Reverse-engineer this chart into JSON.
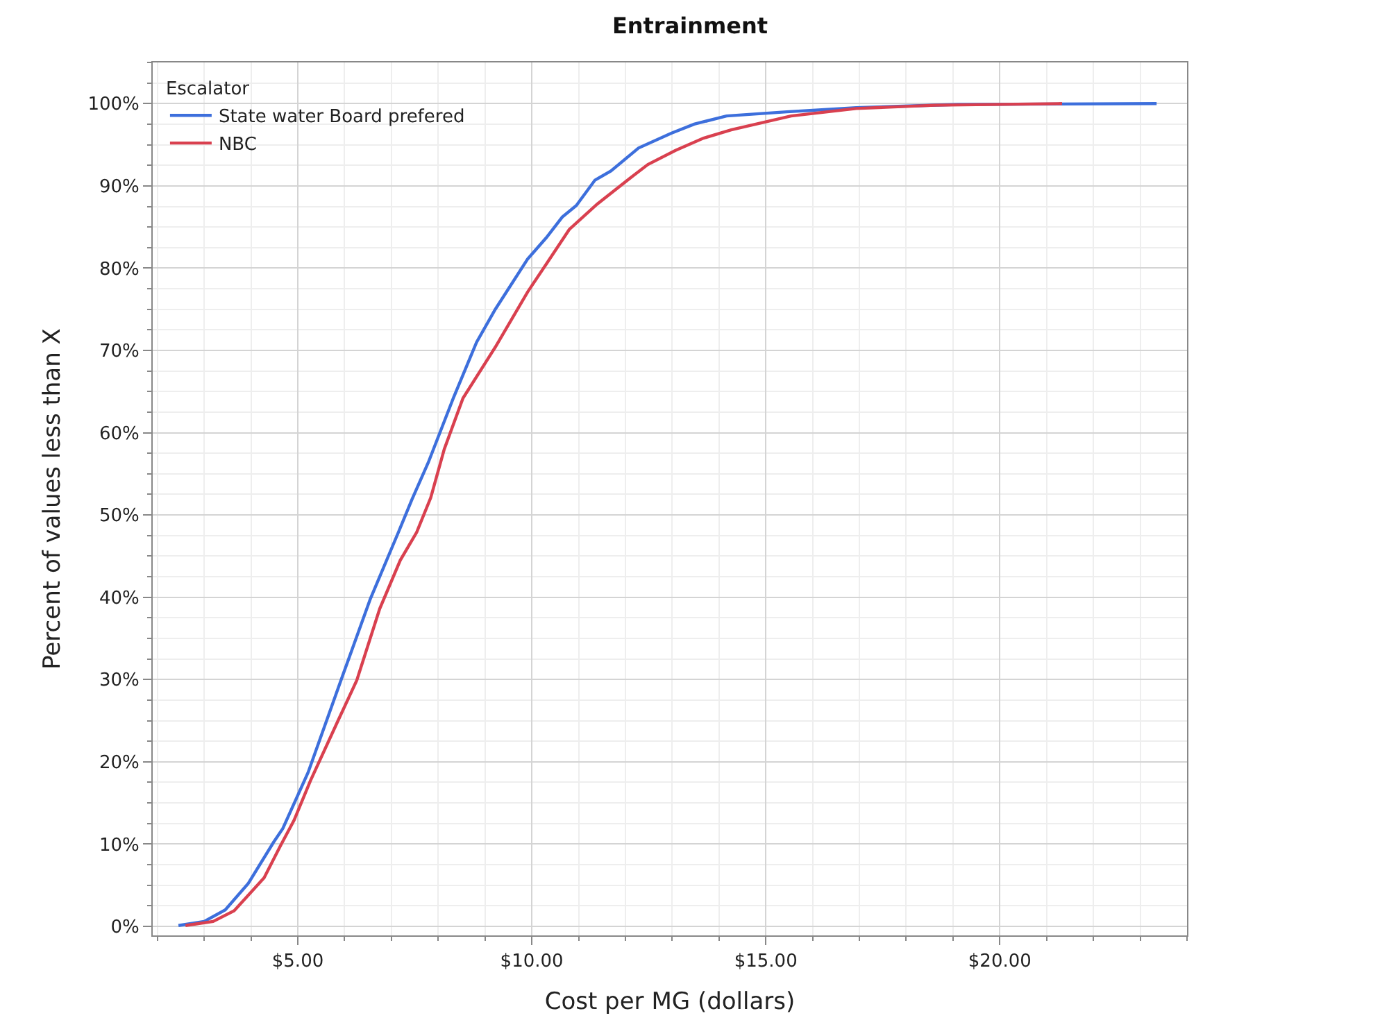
{
  "chart_data": {
    "type": "line",
    "title": "Entrainment",
    "xlabel": "Cost per MG (dollars)",
    "ylabel": "Percent of values less than X",
    "legend_title": "Escalator",
    "legend": "top left",
    "grid": true,
    "marker": "none",
    "line_style": "solid",
    "xlim": [
      1.9,
      24.0
    ],
    "xticks": [
      {
        "value": 5,
        "label": "$5.00"
      },
      {
        "value": 10,
        "label": "$10.00"
      },
      {
        "value": 15,
        "label": "$15.00"
      },
      {
        "value": 20,
        "label": "$20.00"
      }
    ],
    "ylim": [
      -1.1,
      105
    ],
    "yticks": [
      {
        "value": 0,
        "label": "0%"
      },
      {
        "value": 10,
        "label": "10%"
      },
      {
        "value": 20,
        "label": "20%"
      },
      {
        "value": 30,
        "label": "30%"
      },
      {
        "value": 40,
        "label": "40%"
      },
      {
        "value": 50,
        "label": "50%"
      },
      {
        "value": 60,
        "label": "60%"
      },
      {
        "value": 70,
        "label": "70%"
      },
      {
        "value": 80,
        "label": "80%"
      },
      {
        "value": 90,
        "label": "90%"
      },
      {
        "value": 100,
        "label": "100%"
      }
    ],
    "series": [
      {
        "name": "State water Board prefered",
        "color": "#3d6fdc",
        "x": [
          2.45,
          3.0,
          3.45,
          3.94,
          4.48,
          4.68,
          5.22,
          5.96,
          6.55,
          7.15,
          7.44,
          7.79,
          8.33,
          8.82,
          9.22,
          9.91,
          10.31,
          10.65,
          10.95,
          11.35,
          11.69,
          12.28,
          12.98,
          13.47,
          14.16,
          15.45,
          16.93,
          19.1,
          23.35
        ],
        "values": [
          0.1,
          0.6,
          2.0,
          5.2,
          10.2,
          11.9,
          18.7,
          30.5,
          39.8,
          47.9,
          51.9,
          56.4,
          64.3,
          71.0,
          75.0,
          81.1,
          83.7,
          86.2,
          87.6,
          90.7,
          91.8,
          94.6,
          96.4,
          97.5,
          98.5,
          99.0,
          99.5,
          99.9,
          100.0
        ]
      },
      {
        "name": "NBC",
        "color": "#d9404f",
        "x": [
          2.6,
          3.19,
          3.64,
          4.28,
          4.63,
          4.92,
          5.27,
          5.86,
          6.26,
          6.75,
          7.19,
          7.54,
          7.84,
          8.13,
          8.53,
          9.22,
          9.91,
          10.31,
          10.8,
          11.4,
          12.09,
          12.48,
          13.07,
          13.67,
          14.26,
          15.54,
          16.93,
          18.61,
          21.33
        ],
        "values": [
          0.1,
          0.6,
          1.9,
          5.9,
          9.8,
          12.9,
          17.7,
          25.0,
          29.9,
          38.6,
          44.5,
          47.9,
          52.1,
          58.0,
          64.2,
          70.4,
          77.1,
          80.5,
          84.7,
          87.8,
          90.9,
          92.6,
          94.3,
          95.8,
          96.8,
          98.5,
          99.4,
          99.8,
          100.0
        ]
      }
    ]
  }
}
